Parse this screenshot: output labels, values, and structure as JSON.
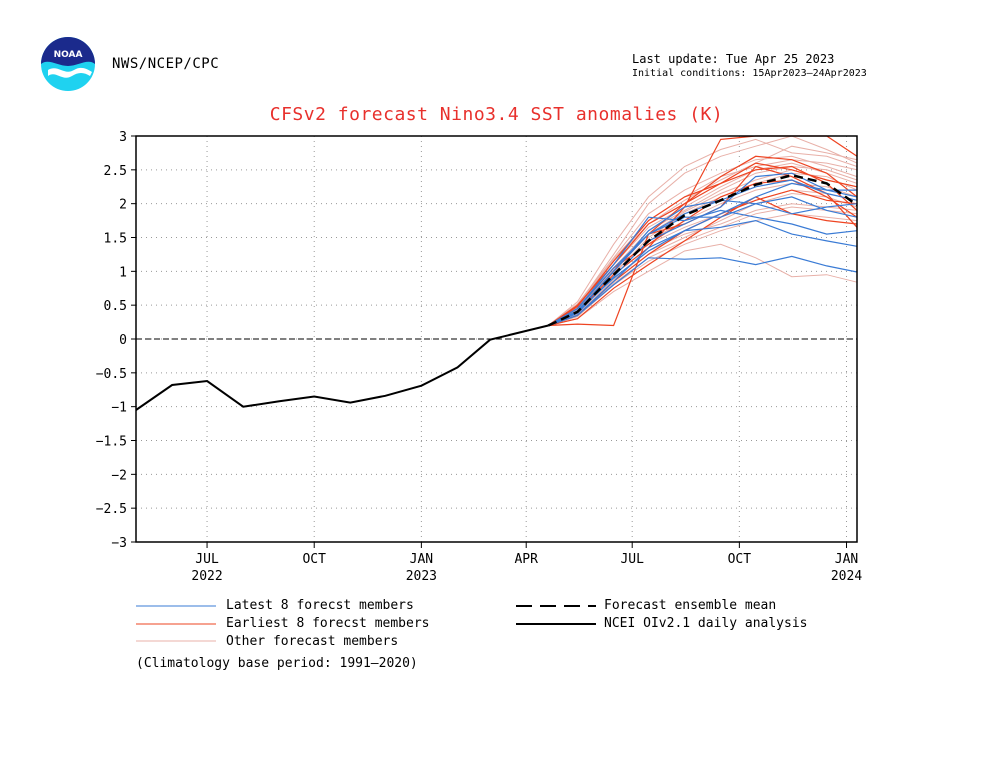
{
  "header": {
    "org": "NWS/NCEP/CPC",
    "last_update": "Last update: Tue Apr 25 2023",
    "initial_conditions": "Initial conditions: 15Apr2023—24Apr2023",
    "logo_icon": "noaa-logo-icon",
    "logo_text": "NOAA"
  },
  "colors": {
    "latest": "#3a7bd5",
    "earliest": "#ee4422",
    "other": "#e8b0a8",
    "mean": "#000000",
    "analysis": "#000000",
    "title": "#e8302c"
  },
  "chart_data": {
    "type": "line",
    "title": "CFSv2 forecast Nino3.4 SST anomalies (K)",
    "ylim": [
      -3,
      3
    ],
    "yticks": [
      -3,
      -2.5,
      -2,
      -1.5,
      -1,
      -0.5,
      0,
      0.5,
      1,
      1.5,
      2,
      2.5,
      3
    ],
    "ytick_labels": [
      "−3",
      "−2.5",
      "−2",
      "−1.5",
      "−1",
      "−0.5",
      "0",
      "0.5",
      "1",
      "1.5",
      "2",
      "2.5",
      "3"
    ],
    "xlim": [
      "2022-05-01",
      "2024-01-10"
    ],
    "xticks": [
      {
        "date": "2022-07-01",
        "label": "JUL",
        "year": "2022"
      },
      {
        "date": "2022-10-01",
        "label": "OCT",
        "year": ""
      },
      {
        "date": "2023-01-01",
        "label": "JAN",
        "year": "2023"
      },
      {
        "date": "2023-04-01",
        "label": "APR",
        "year": ""
      },
      {
        "date": "2023-07-01",
        "label": "JUL",
        "year": ""
      },
      {
        "date": "2023-10-01",
        "label": "OCT",
        "year": ""
      },
      {
        "date": "2024-01-01",
        "label": "JAN",
        "year": "2024"
      }
    ],
    "grid": true,
    "zero_line": true,
    "analysis": {
      "name": "NCEI OIv2.1 daily analysis",
      "x": [
        "2022-05-01",
        "2022-06-01",
        "2022-07-01",
        "2022-08-01",
        "2022-09-01",
        "2022-10-01",
        "2022-11-01",
        "2022-12-01",
        "2023-01-01",
        "2023-02-01",
        "2023-03-01",
        "2023-04-01",
        "2023-04-20"
      ],
      "y": [
        -1.05,
        -0.68,
        -0.62,
        -1.0,
        -0.92,
        -0.85,
        -0.94,
        -0.84,
        -0.69,
        -0.42,
        -0.01,
        0.12,
        0.2
      ]
    },
    "forecast_x": [
      "2023-04-20",
      "2023-05-15",
      "2023-06-15",
      "2023-07-15",
      "2023-08-15",
      "2023-09-15",
      "2023-10-15",
      "2023-11-15",
      "2023-12-15",
      "2024-01-10"
    ],
    "ensemble_mean": {
      "name": "Forecast ensemble mean",
      "y": [
        0.2,
        0.4,
        0.95,
        1.45,
        1.83,
        2.05,
        2.28,
        2.42,
        2.3,
        1.98
      ]
    },
    "members_latest": {
      "name": "Latest 8 forecst members",
      "series": [
        [
          0.2,
          0.45,
          1.05,
          1.55,
          1.85,
          2.05,
          2.25,
          2.35,
          2.15,
          2.05
        ],
        [
          0.2,
          0.4,
          0.9,
          1.3,
          1.6,
          1.85,
          2.1,
          2.3,
          2.2,
          2.2
        ],
        [
          0.2,
          0.35,
          0.8,
          1.2,
          1.18,
          1.2,
          1.1,
          1.22,
          1.08,
          0.99
        ],
        [
          0.2,
          0.45,
          1.1,
          1.8,
          1.75,
          1.9,
          1.8,
          1.7,
          1.55,
          1.6
        ],
        [
          0.2,
          0.35,
          0.85,
          1.35,
          1.6,
          1.65,
          1.75,
          1.55,
          1.45,
          1.37
        ],
        [
          0.2,
          0.4,
          1.0,
          1.6,
          1.95,
          2.05,
          2.0,
          2.1,
          1.9,
          1.8
        ],
        [
          0.2,
          0.38,
          0.92,
          1.45,
          1.7,
          1.95,
          2.4,
          2.45,
          2.2,
          2.1
        ],
        [
          0.2,
          0.42,
          1.0,
          1.55,
          1.8,
          1.8,
          2.0,
          1.85,
          1.95,
          2.0
        ]
      ]
    },
    "members_earliest": {
      "name": "Earliest 8 forecst members",
      "series": [
        [
          0.2,
          0.22,
          0.2,
          1.55,
          2.0,
          2.3,
          2.5,
          2.55,
          2.3,
          1.9
        ],
        [
          0.2,
          0.4,
          0.95,
          1.35,
          1.95,
          2.95,
          3.0,
          3.0,
          3.0,
          2.7
        ],
        [
          0.2,
          0.5,
          1.1,
          1.7,
          2.0,
          2.4,
          2.7,
          2.65,
          2.45,
          2.1
        ],
        [
          0.2,
          0.3,
          0.75,
          1.1,
          1.45,
          1.8,
          2.1,
          1.85,
          1.75,
          1.7
        ],
        [
          0.2,
          0.45,
          1.05,
          1.4,
          1.75,
          2.1,
          2.3,
          2.35,
          2.1,
          1.8
        ],
        [
          0.2,
          0.35,
          0.85,
          1.25,
          1.6,
          1.85,
          2.05,
          2.2,
          2.05,
          2.0
        ],
        [
          0.2,
          0.4,
          1.0,
          1.55,
          1.7,
          1.95,
          2.55,
          2.4,
          2.15,
          1.65
        ],
        [
          0.2,
          0.48,
          1.15,
          1.75,
          2.1,
          2.3,
          2.6,
          2.5,
          2.35,
          2.25
        ]
      ]
    },
    "members_other": {
      "name": "Other forecast members",
      "series": [
        [
          0.2,
          0.5,
          1.25,
          2.0,
          2.45,
          2.7,
          2.85,
          3.0,
          2.8,
          2.6
        ],
        [
          0.2,
          0.3,
          0.7,
          1.0,
          1.3,
          1.4,
          1.2,
          0.92,
          0.95,
          0.84
        ],
        [
          0.2,
          0.55,
          1.4,
          2.1,
          2.55,
          2.8,
          2.95,
          2.75,
          2.7,
          2.55
        ],
        [
          0.2,
          0.42,
          1.0,
          1.4,
          1.65,
          1.85,
          2.05,
          2.2,
          2.15,
          2.05
        ],
        [
          0.2,
          0.36,
          0.88,
          1.3,
          1.55,
          1.7,
          1.9,
          2.0,
          1.95,
          1.9
        ],
        [
          0.2,
          0.46,
          1.1,
          1.65,
          1.95,
          2.25,
          2.5,
          2.6,
          2.45,
          2.3
        ],
        [
          0.2,
          0.33,
          0.8,
          1.15,
          1.4,
          1.6,
          1.75,
          1.85,
          1.8,
          1.75
        ],
        [
          0.2,
          0.52,
          1.2,
          1.85,
          2.2,
          2.45,
          2.65,
          2.7,
          2.55,
          2.4
        ],
        [
          0.2,
          0.39,
          0.95,
          1.5,
          1.85,
          2.1,
          2.3,
          2.45,
          2.4,
          2.2
        ],
        [
          0.2,
          0.44,
          1.05,
          1.6,
          1.9,
          2.2,
          2.45,
          2.55,
          2.5,
          2.35
        ],
        [
          0.2,
          0.37,
          0.85,
          1.25,
          1.5,
          1.75,
          2.0,
          2.15,
          2.1,
          1.95
        ],
        [
          0.2,
          0.48,
          1.15,
          1.7,
          2.05,
          2.35,
          2.6,
          2.85,
          2.75,
          2.65
        ],
        [
          0.2,
          0.41,
          0.98,
          1.45,
          1.75,
          2.0,
          2.2,
          2.3,
          2.25,
          2.1
        ],
        [
          0.2,
          0.34,
          0.82,
          1.2,
          1.45,
          1.65,
          1.85,
          1.95,
          1.9,
          1.85
        ],
        [
          0.2,
          0.5,
          1.18,
          1.75,
          2.1,
          2.4,
          2.55,
          2.65,
          2.6,
          2.5
        ],
        [
          0.2,
          0.43,
          1.02,
          1.55,
          1.88,
          2.15,
          2.35,
          2.5,
          2.35,
          2.25
        ]
      ]
    },
    "climatology_note": "(Climatology base period: 1991—2020)"
  }
}
